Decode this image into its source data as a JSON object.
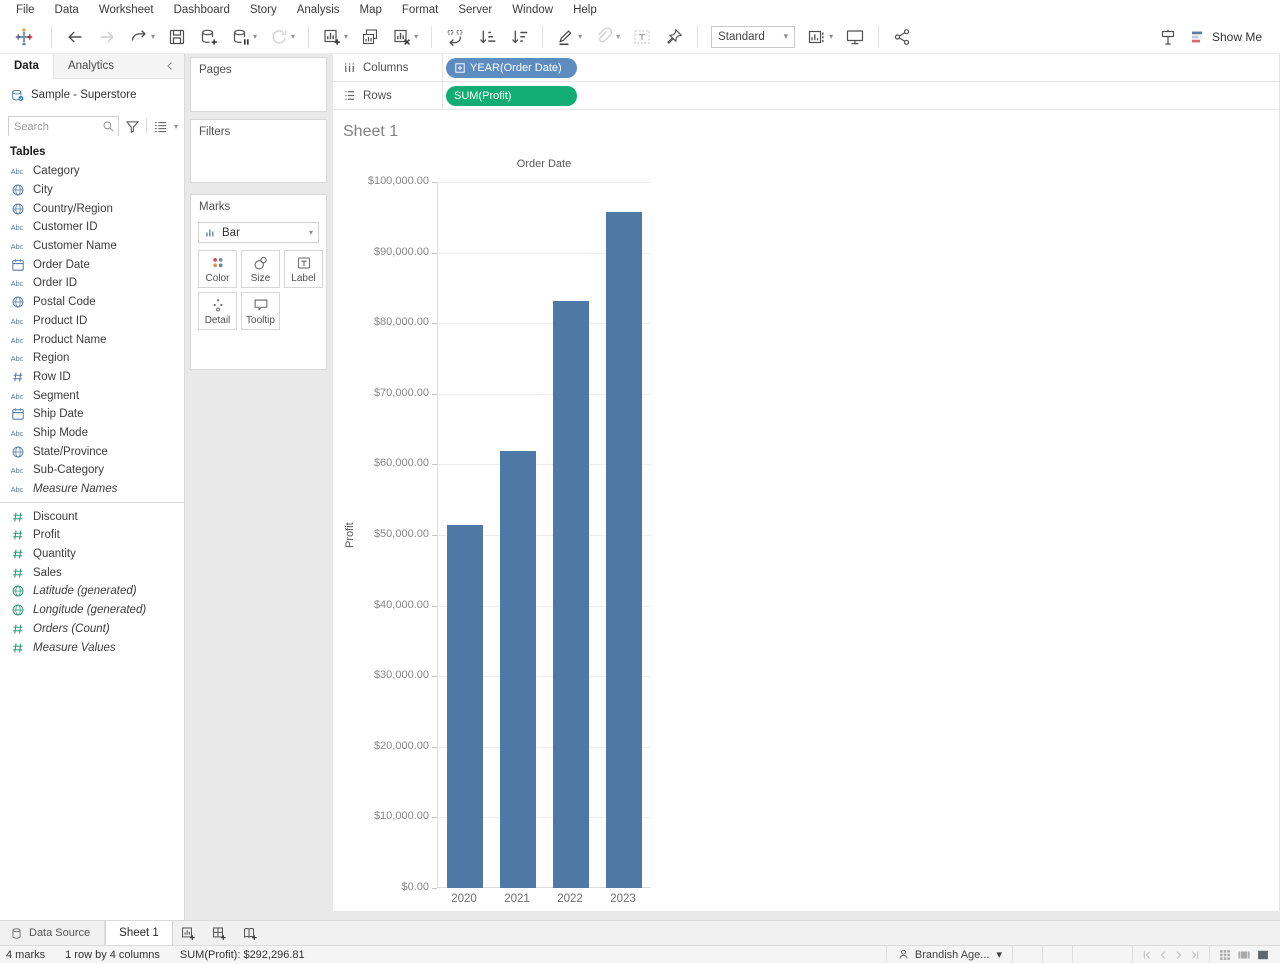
{
  "menu": {
    "items": [
      "File",
      "Data",
      "Worksheet",
      "Dashboard",
      "Story",
      "Analysis",
      "Map",
      "Format",
      "Server",
      "Window",
      "Help"
    ]
  },
  "toolbar": {
    "fit_selector": "Standard",
    "show_me_label": "Show Me",
    "groups": [
      [
        {
          "name": "undo-icon"
        },
        {
          "name": "redo-icon",
          "disabled": true
        },
        {
          "name": "replay-icon",
          "caret": true
        },
        {
          "name": "save-icon"
        },
        {
          "name": "new-datasource-icon"
        },
        {
          "name": "pause-updates-icon",
          "caret": true
        },
        {
          "name": "run-update-icon",
          "disabled": true,
          "caret": true
        }
      ],
      [
        {
          "name": "new-worksheet-icon",
          "caret": true
        },
        {
          "name": "duplicate-sheet-icon"
        },
        {
          "name": "clear-sheet-icon",
          "caret": true
        }
      ],
      [
        {
          "name": "swap-rows-columns-icon"
        },
        {
          "name": "sort-ascending-icon"
        },
        {
          "name": "sort-descending-icon"
        }
      ],
      [
        {
          "name": "highlight-icon",
          "caret": true
        },
        {
          "name": "group-members-icon",
          "disabled": true,
          "caret": true
        },
        {
          "name": "show-mark-labels-icon",
          "disabled": true
        },
        {
          "name": "fix-axes-icon"
        }
      ]
    ]
  },
  "sidebar": {
    "tabs": {
      "data": "Data",
      "analytics": "Analytics"
    },
    "datasource_name": "Sample - Superstore",
    "search_placeholder": "Search",
    "section_title": "Tables",
    "fields": [
      {
        "label": "Category",
        "icon": "abc",
        "role": "dimension"
      },
      {
        "label": "City",
        "icon": "globe",
        "role": "dimension"
      },
      {
        "label": "Country/Region",
        "icon": "globe",
        "role": "dimension"
      },
      {
        "label": "Customer ID",
        "icon": "abc",
        "role": "dimension"
      },
      {
        "label": "Customer Name",
        "icon": "abc",
        "role": "dimension"
      },
      {
        "label": "Order Date",
        "icon": "calendar",
        "role": "dimension"
      },
      {
        "label": "Order ID",
        "icon": "abc",
        "role": "dimension"
      },
      {
        "label": "Postal Code",
        "icon": "globe",
        "role": "dimension"
      },
      {
        "label": "Product ID",
        "icon": "abc",
        "role": "dimension"
      },
      {
        "label": "Product Name",
        "icon": "abc",
        "role": "dimension"
      },
      {
        "label": "Region",
        "icon": "abc",
        "role": "dimension"
      },
      {
        "label": "Row ID",
        "icon": "hash",
        "role": "dimension"
      },
      {
        "label": "Segment",
        "icon": "abc",
        "role": "dimension"
      },
      {
        "label": "Ship Date",
        "icon": "calendar",
        "role": "dimension"
      },
      {
        "label": "Ship Mode",
        "icon": "abc",
        "role": "dimension"
      },
      {
        "label": "State/Province",
        "icon": "globe",
        "role": "dimension"
      },
      {
        "label": "Sub-Category",
        "icon": "abc",
        "role": "dimension"
      },
      {
        "label": "Measure Names",
        "icon": "abc",
        "role": "dimension",
        "italic": true,
        "divider_after": true
      },
      {
        "label": "Discount",
        "icon": "hash",
        "role": "measure"
      },
      {
        "label": "Profit",
        "icon": "hash",
        "role": "measure"
      },
      {
        "label": "Quantity",
        "icon": "hash",
        "role": "measure"
      },
      {
        "label": "Sales",
        "icon": "hash",
        "role": "measure"
      },
      {
        "label": "Latitude (generated)",
        "icon": "globe",
        "role": "measure",
        "italic": true
      },
      {
        "label": "Longitude (generated)",
        "icon": "globe",
        "role": "measure",
        "italic": true
      },
      {
        "label": "Orders (Count)",
        "icon": "hash",
        "role": "measure",
        "italic": true
      },
      {
        "label": "Measure Values",
        "icon": "hash",
        "role": "measure",
        "italic": true
      }
    ]
  },
  "cards": {
    "pages_title": "Pages",
    "filters_title": "Filters",
    "marks_title": "Marks",
    "mark_type": "Bar",
    "buttons": [
      {
        "label": "Color",
        "icon": "color-marks-icon"
      },
      {
        "label": "Size",
        "icon": "size-marks-icon"
      },
      {
        "label": "Label",
        "icon": "label-marks-icon"
      },
      {
        "label": "Detail",
        "icon": "detail-marks-icon"
      },
      {
        "label": "Tooltip",
        "icon": "tooltip-marks-icon"
      }
    ]
  },
  "shelves": {
    "columns_label": "Columns",
    "rows_label": "Rows",
    "columns_pill": "YEAR(Order Date)",
    "rows_pill": "SUM(Profit)",
    "pill_blue_color": "#5d8cc1",
    "pill_green_color": "#12ad74"
  },
  "sheet": {
    "title": "Sheet 1"
  },
  "chart_data": {
    "type": "bar",
    "title": "Sheet 1",
    "x_header": "Order Date",
    "categories": [
      "2020",
      "2021",
      "2022",
      "2023"
    ],
    "values": [
      51450,
      61870,
      83200,
      95780
    ],
    "series_name": "SUM(Profit)",
    "xlabel": "Order Date",
    "ylabel": "Profit",
    "ylim": [
      0,
      100000
    ],
    "ytick_interval": 10000,
    "ytick_labels": [
      "$0.00",
      "$10,000.00",
      "$20,000.00",
      "$30,000.00",
      "$40,000.00",
      "$50,000.00",
      "$60,000.00",
      "$70,000.00",
      "$80,000.00",
      "$90,000.00",
      "$100,000.00"
    ],
    "bar_color": "#4e79a7",
    "gridlines": true,
    "legend": "none"
  },
  "tabs_bar": {
    "datasource_tab": "Data Source",
    "sheet_tab": "Sheet 1"
  },
  "status_bar": {
    "marks": "4 marks",
    "dimensions": "1 row by 4 columns",
    "aggregate": "SUM(Profit): $292,296.81",
    "user": "Brandish Age..."
  }
}
